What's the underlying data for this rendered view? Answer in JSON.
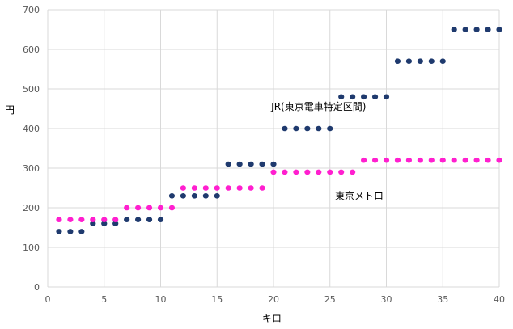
{
  "chart_data": {
    "type": "scatter",
    "xlabel": "キロ",
    "ylabel": "円",
    "xlim": [
      0,
      40
    ],
    "ylim": [
      0,
      700
    ],
    "x_ticks": [
      "0",
      "5",
      "10",
      "15",
      "20",
      "25",
      "30",
      "35",
      "40"
    ],
    "y_ticks": [
      "0",
      "100",
      "200",
      "300",
      "400",
      "500",
      "600",
      "700"
    ],
    "grid": true,
    "legend": "none",
    "series": [
      {
        "name": "JR(東京電車特定区間)",
        "color": "#1f3a6e",
        "points": [
          [
            1,
            140
          ],
          [
            2,
            140
          ],
          [
            3,
            140
          ],
          [
            4,
            160
          ],
          [
            5,
            160
          ],
          [
            6,
            160
          ],
          [
            7,
            170
          ],
          [
            8,
            170
          ],
          [
            9,
            170
          ],
          [
            10,
            170
          ],
          [
            11,
            230
          ],
          [
            12,
            230
          ],
          [
            13,
            230
          ],
          [
            14,
            230
          ],
          [
            15,
            230
          ],
          [
            16,
            310
          ],
          [
            17,
            310
          ],
          [
            18,
            310
          ],
          [
            19,
            310
          ],
          [
            20,
            310
          ],
          [
            21,
            400
          ],
          [
            22,
            400
          ],
          [
            23,
            400
          ],
          [
            24,
            400
          ],
          [
            25,
            400
          ],
          [
            26,
            480
          ],
          [
            27,
            480
          ],
          [
            28,
            480
          ],
          [
            29,
            480
          ],
          [
            30,
            480
          ],
          [
            31,
            570
          ],
          [
            32,
            570
          ],
          [
            33,
            570
          ],
          [
            34,
            570
          ],
          [
            35,
            570
          ],
          [
            36,
            650
          ],
          [
            37,
            650
          ],
          [
            38,
            650
          ],
          [
            39,
            650
          ],
          [
            40,
            650
          ]
        ]
      },
      {
        "name": "東京メトロ",
        "color": "#ff1fcf",
        "points": [
          [
            1,
            170
          ],
          [
            2,
            170
          ],
          [
            3,
            170
          ],
          [
            4,
            170
          ],
          [
            5,
            170
          ],
          [
            6,
            170
          ],
          [
            7,
            200
          ],
          [
            8,
            200
          ],
          [
            9,
            200
          ],
          [
            10,
            200
          ],
          [
            11,
            200
          ],
          [
            12,
            250
          ],
          [
            13,
            250
          ],
          [
            14,
            250
          ],
          [
            15,
            250
          ],
          [
            16,
            250
          ],
          [
            17,
            250
          ],
          [
            18,
            250
          ],
          [
            19,
            250
          ],
          [
            20,
            290
          ],
          [
            21,
            290
          ],
          [
            22,
            290
          ],
          [
            23,
            290
          ],
          [
            24,
            290
          ],
          [
            25,
            290
          ],
          [
            26,
            290
          ],
          [
            27,
            290
          ],
          [
            28,
            320
          ],
          [
            29,
            320
          ],
          [
            30,
            320
          ],
          [
            31,
            320
          ],
          [
            32,
            320
          ],
          [
            33,
            320
          ],
          [
            34,
            320
          ],
          [
            35,
            320
          ],
          [
            36,
            320
          ],
          [
            37,
            320
          ],
          [
            38,
            320
          ],
          [
            39,
            320
          ],
          [
            40,
            320
          ]
        ]
      }
    ],
    "annotations": [
      {
        "text": "JR(東京電車特定区間)",
        "x": 24,
        "y": 455
      },
      {
        "text": "東京メトロ",
        "x": 27.6,
        "y": 230
      }
    ]
  }
}
